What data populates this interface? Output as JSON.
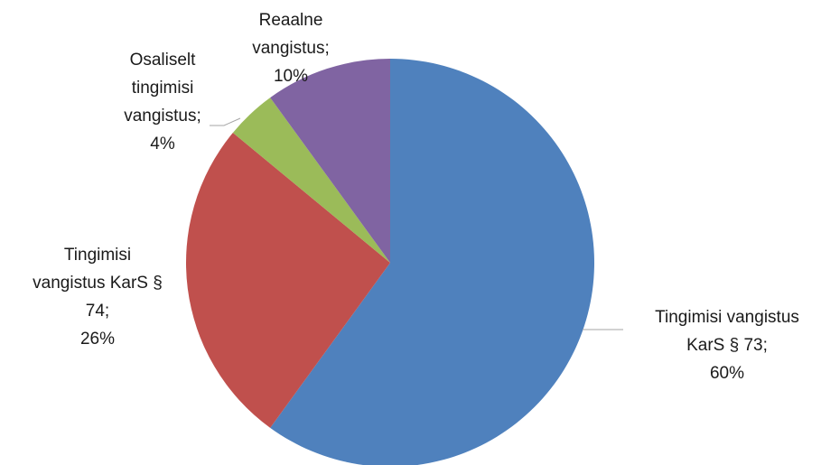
{
  "chart_data": {
    "type": "pie",
    "title": "",
    "slices": [
      {
        "name": "Tingimisi vangistus KarS § 73",
        "value": 60,
        "color": "#4f81bd",
        "label_lines": [
          "Tingimisi vangistus",
          "KarS § 73;",
          "60%"
        ]
      },
      {
        "name": "Tingimisi vangistus KarS § 74",
        "value": 26,
        "color": "#c0504d",
        "label_lines": [
          "Tingimisi",
          "vangistus KarS §",
          "74;",
          "26%"
        ]
      },
      {
        "name": "Osaliselt tingimisi vangistus",
        "value": 4,
        "color": "#9bbb59",
        "label_lines": [
          "Osaliselt",
          "tingimisi",
          "vangistus;",
          "4%"
        ]
      },
      {
        "name": "Reaalne vangistus",
        "value": 10,
        "color": "#8064a2",
        "label_lines": [
          "Reaalne",
          "vangistus;",
          "10%"
        ]
      }
    ],
    "start_angle_deg": 0,
    "direction": "clockwise",
    "legend": "none",
    "data_labels": "outside with leader lines"
  }
}
